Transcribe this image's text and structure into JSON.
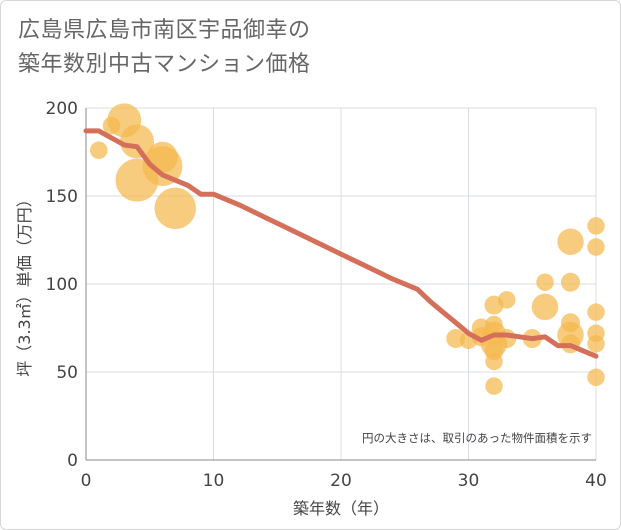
{
  "title_lines": [
    "広島県広島市南区宇品御幸の",
    "築年数別中古マンション価格"
  ],
  "chart_data": {
    "type": "scatter",
    "xlabel": "築年数（年）",
    "ylabel": "坪（3.3㎡）単価（万円）",
    "xlim": [
      0,
      40
    ],
    "ylim": [
      0,
      200
    ],
    "xticks": [
      0,
      10,
      20,
      30,
      40
    ],
    "yticks": [
      0,
      50,
      100,
      150,
      200
    ],
    "grid": true,
    "note": "円の大きさは、取引のあった物件面積を示す",
    "colors": {
      "bubble": "#f5b84d",
      "trend": "#d4705a",
      "grid": "#d8dde3",
      "plot_bg": "#ffffff"
    },
    "points": [
      {
        "x": 1,
        "y": 176,
        "size": 0.5
      },
      {
        "x": 2,
        "y": 190,
        "size": 0.5
      },
      {
        "x": 3,
        "y": 193,
        "size": 1.6
      },
      {
        "x": 4,
        "y": 181,
        "size": 1.6
      },
      {
        "x": 4,
        "y": 159,
        "size": 2.2
      },
      {
        "x": 6,
        "y": 172,
        "size": 1.4
      },
      {
        "x": 6,
        "y": 167,
        "size": 2.0
      },
      {
        "x": 7,
        "y": 143,
        "size": 2.1
      },
      {
        "x": 29,
        "y": 69,
        "size": 0.6
      },
      {
        "x": 30,
        "y": 68,
        "size": 0.5
      },
      {
        "x": 31,
        "y": 75,
        "size": 0.6
      },
      {
        "x": 31,
        "y": 70,
        "size": 0.6
      },
      {
        "x": 32,
        "y": 88,
        "size": 0.6
      },
      {
        "x": 32,
        "y": 77,
        "size": 0.5
      },
      {
        "x": 32,
        "y": 72,
        "size": 0.9
      },
      {
        "x": 32,
        "y": 66,
        "size": 1.1
      },
      {
        "x": 32,
        "y": 62,
        "size": 0.6
      },
      {
        "x": 32,
        "y": 56,
        "size": 0.5
      },
      {
        "x": 32,
        "y": 42,
        "size": 0.5
      },
      {
        "x": 33,
        "y": 91,
        "size": 0.5
      },
      {
        "x": 33,
        "y": 69,
        "size": 0.6
      },
      {
        "x": 35,
        "y": 69,
        "size": 0.6
      },
      {
        "x": 36,
        "y": 101,
        "size": 0.5
      },
      {
        "x": 36,
        "y": 87,
        "size": 1.1
      },
      {
        "x": 38,
        "y": 124,
        "size": 1.1
      },
      {
        "x": 38,
        "y": 101,
        "size": 0.6
      },
      {
        "x": 38,
        "y": 78,
        "size": 0.6
      },
      {
        "x": 38,
        "y": 71,
        "size": 1.1
      },
      {
        "x": 38,
        "y": 66,
        "size": 0.6
      },
      {
        "x": 40,
        "y": 133,
        "size": 0.5
      },
      {
        "x": 40,
        "y": 121,
        "size": 0.5
      },
      {
        "x": 40,
        "y": 84,
        "size": 0.5
      },
      {
        "x": 40,
        "y": 72,
        "size": 0.5
      },
      {
        "x": 40,
        "y": 66,
        "size": 0.5
      },
      {
        "x": 40,
        "y": 47,
        "size": 0.5
      }
    ],
    "trend": [
      {
        "x": 0,
        "y": 187
      },
      {
        "x": 1,
        "y": 187
      },
      {
        "x": 2,
        "y": 183
      },
      {
        "x": 3,
        "y": 179
      },
      {
        "x": 4,
        "y": 178
      },
      {
        "x": 5,
        "y": 168
      },
      {
        "x": 6,
        "y": 162
      },
      {
        "x": 7,
        "y": 159
      },
      {
        "x": 8,
        "y": 156
      },
      {
        "x": 9,
        "y": 151
      },
      {
        "x": 10,
        "y": 151
      },
      {
        "x": 12,
        "y": 145
      },
      {
        "x": 14,
        "y": 138
      },
      {
        "x": 16,
        "y": 131
      },
      {
        "x": 18,
        "y": 124
      },
      {
        "x": 20,
        "y": 117
      },
      {
        "x": 22,
        "y": 110
      },
      {
        "x": 24,
        "y": 103
      },
      {
        "x": 26,
        "y": 97
      },
      {
        "x": 27,
        "y": 90
      },
      {
        "x": 28,
        "y": 84
      },
      {
        "x": 29,
        "y": 78
      },
      {
        "x": 30,
        "y": 72
      },
      {
        "x": 31,
        "y": 68
      },
      {
        "x": 32,
        "y": 71
      },
      {
        "x": 33,
        "y": 71
      },
      {
        "x": 34,
        "y": 70
      },
      {
        "x": 35,
        "y": 69
      },
      {
        "x": 36,
        "y": 70
      },
      {
        "x": 37,
        "y": 65
      },
      {
        "x": 38,
        "y": 65
      },
      {
        "x": 39,
        "y": 62
      },
      {
        "x": 40,
        "y": 59
      }
    ]
  }
}
